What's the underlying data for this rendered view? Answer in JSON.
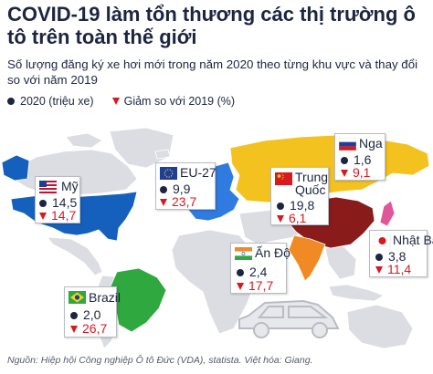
{
  "header": {
    "title": "COVID-19 làm tổn thương các thị trường ô tô trên toàn thế giới",
    "subtitle": "Số lượng đăng ký xe hơi mới trong năm 2020 theo từng khu vực và thay đổi so với năm 2019"
  },
  "legend": {
    "volume": "2020 (triệu xe)",
    "decline": "Giảm so với 2019 (%)"
  },
  "chart_data": {
    "type": "table",
    "title": "COVID-19 làm tổn thương các thị trường ô tô trên toàn thế giới",
    "subtitle": "Số lượng đăng ký xe hơi mới trong năm 2020 theo từng khu vực và thay đổi so với năm 2019",
    "columns": [
      "2020 (triệu xe)",
      "Giảm so với 2019 (%)"
    ],
    "rows": [
      {
        "region": "Mỹ",
        "registrations_2020": "14,5",
        "decline_pct": "14,7",
        "color": "#1560bd"
      },
      {
        "region": "EU-27",
        "registrations_2020": "9,9",
        "decline_pct": "23,7",
        "color": "#2f7be0"
      },
      {
        "region": "Nga",
        "registrations_2020": "1,6",
        "decline_pct": "9,1",
        "color": "#f3c21e"
      },
      {
        "region": "Trung Quốc",
        "registrations_2020": "19,8",
        "decline_pct": "6,1",
        "color": "#8a1b1b"
      },
      {
        "region": "Nhật Bản",
        "registrations_2020": "3,8",
        "decline_pct": "11,4",
        "color": "#e0569a"
      },
      {
        "region": "Ấn Độ",
        "registrations_2020": "2,4",
        "decline_pct": "17,7",
        "color": "#f08a24"
      },
      {
        "region": "Brazil",
        "registrations_2020": "2,0",
        "decline_pct": "26,7",
        "color": "#2ea83f"
      }
    ],
    "legend_position": "top-left"
  },
  "colors": {
    "text": "#1d2540",
    "decline": "#d71920",
    "land": "#dcdde2"
  },
  "footer": {
    "source": "Nguồn: Hiệp hội Công nghiệp Ô tô Đức (VDA), statista. Việt hóa: Giang."
  }
}
